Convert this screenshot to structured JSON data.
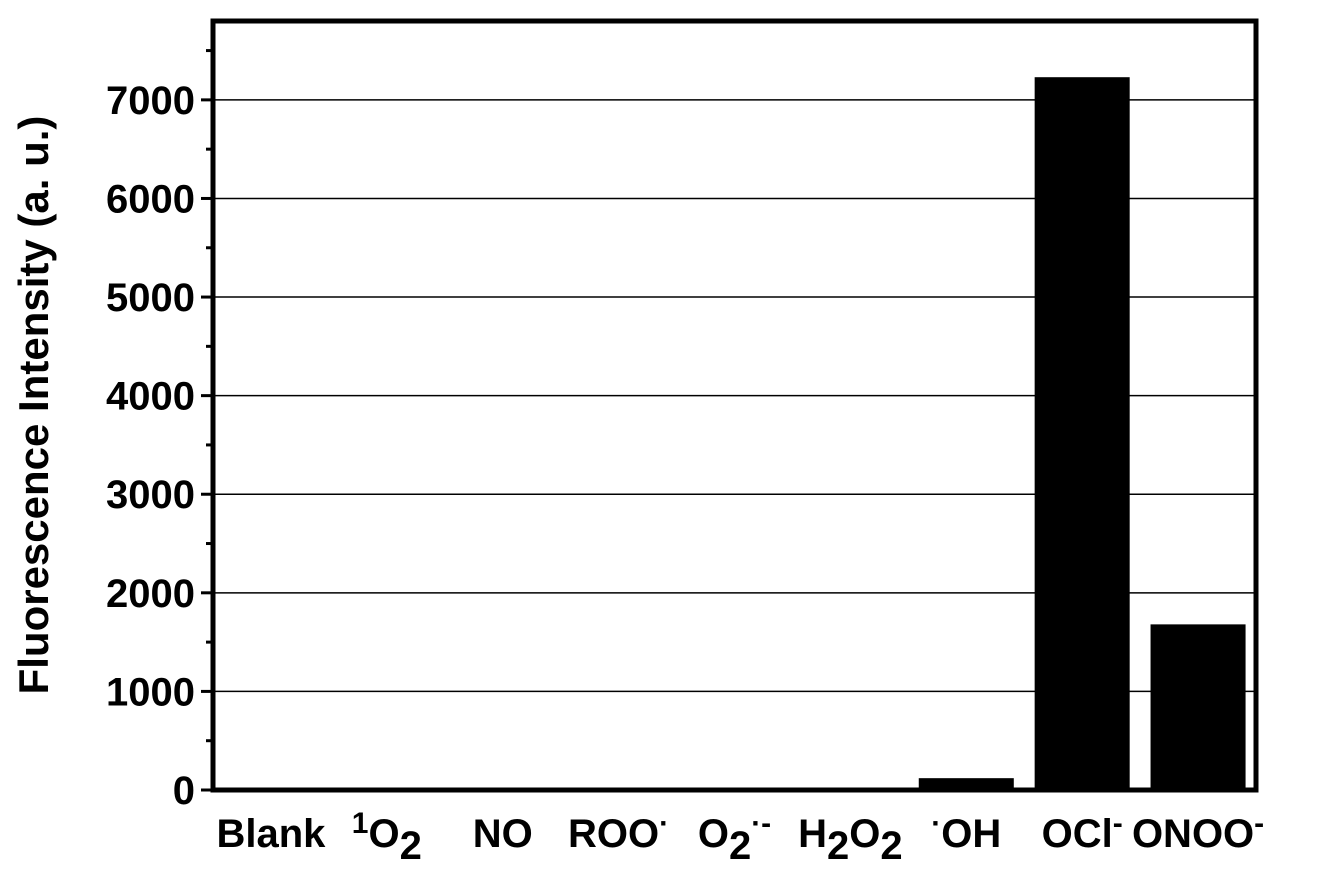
{
  "chart_data": {
    "type": "bar",
    "categories": [
      {
        "label": "Blank"
      },
      {
        "label": "O",
        "pre_sup": "1",
        "sub": "2"
      },
      {
        "label": "NO"
      },
      {
        "label": "ROO",
        "sup": "·"
      },
      {
        "label": "O",
        "sub": "2",
        "sup": "·-"
      },
      {
        "label": "H",
        "sub": "2",
        "mid": "O",
        "sub2": "2"
      },
      {
        "label": "OH",
        "pre_sup": "·"
      },
      {
        "label": "OCl",
        "sup": "-"
      },
      {
        "label": "ONOO",
        "sup": "-"
      }
    ],
    "values": [
      0,
      0,
      0,
      0,
      0,
      0,
      120,
      7230,
      1680
    ],
    "ylabel": "Fluorescence Intensity (a. u.)",
    "xlabel": "",
    "ylim": [
      0,
      7800
    ],
    "yticks": [
      0,
      1000,
      2000,
      3000,
      4000,
      5000,
      6000,
      7000
    ],
    "grid": true,
    "bar_color": "#000000"
  }
}
